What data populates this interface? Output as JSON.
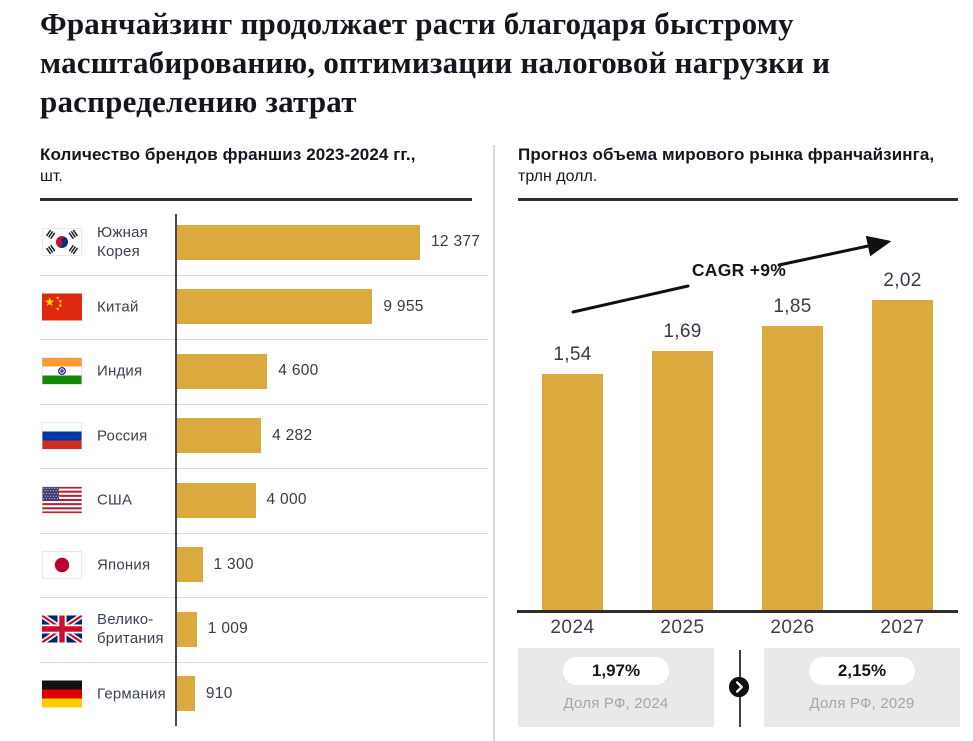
{
  "page_title": "Франчайзинг продолжает расти благодаря быстрому масштабированию, оптимизации налоговой нагрузки и распределению затрат",
  "colors": {
    "accent_gold": "#DCA93E",
    "dark_text": "#15151E",
    "label_text": "#3A4150",
    "muted_text": "#A5A5A8",
    "card_bg": "#E9E9EA"
  },
  "left_chart": {
    "title": "Количество брендов франшиз 2023-2024 гг.,",
    "unit": "шт.",
    "max_value": 12377,
    "rows": [
      {
        "country": "Южная\nКорея",
        "flag": "kr",
        "flag_icon": "south-korea-flag-icon",
        "value": 12377,
        "value_label": "12 377"
      },
      {
        "country": "Китай",
        "flag": "cn",
        "flag_icon": "china-flag-icon",
        "value": 9955,
        "value_label": "9 955"
      },
      {
        "country": "Индия",
        "flag": "in",
        "flag_icon": "india-flag-icon",
        "value": 4600,
        "value_label": "4 600"
      },
      {
        "country": "Россия",
        "flag": "ru",
        "flag_icon": "russia-flag-icon",
        "value": 4282,
        "value_label": "4 282"
      },
      {
        "country": "США",
        "flag": "us",
        "flag_icon": "usa-flag-icon",
        "value": 4000,
        "value_label": "4 000"
      },
      {
        "country": "Япония",
        "flag": "jp",
        "flag_icon": "japan-flag-icon",
        "value": 1300,
        "value_label": "1 300"
      },
      {
        "country": "Велико-\nбритания",
        "flag": "gb",
        "flag_icon": "uk-flag-icon",
        "value": 1009,
        "value_label": "1 009"
      },
      {
        "country": "Германия",
        "flag": "de",
        "flag_icon": "germany-flag-icon",
        "value": 910,
        "value_label": "910"
      }
    ]
  },
  "right_chart": {
    "title": "Прогноз объема мирового рынка франчайзинга,",
    "unit": "трлн долл.",
    "cagr_label": "CAGR +9%",
    "bars": [
      {
        "year": "2024",
        "value": 1.54,
        "value_label": "1,54"
      },
      {
        "year": "2025",
        "value": 1.69,
        "value_label": "1,69"
      },
      {
        "year": "2026",
        "value": 1.85,
        "value_label": "1,85"
      },
      {
        "year": "2027",
        "value": 2.02,
        "value_label": "2,02"
      }
    ]
  },
  "share_cards": {
    "left": {
      "percent": "1,97%",
      "caption": "Доля РФ, 2024"
    },
    "right": {
      "percent": "2,15%",
      "caption": "Доля РФ, 2029"
    },
    "arrow_icon": "chevron-right-icon"
  },
  "chart_data": [
    {
      "type": "bar",
      "orientation": "horizontal",
      "title": "Количество брендов франшиз 2023-2024 гг., шт.",
      "categories": [
        "Южная Корея",
        "Китай",
        "Индия",
        "Россия",
        "США",
        "Япония",
        "Великобритания",
        "Германия"
      ],
      "values": [
        12377,
        9955,
        4600,
        4282,
        4000,
        1300,
        1009,
        910
      ],
      "value_labels": [
        "12 377",
        "9 955",
        "4 600",
        "4 282",
        "4 000",
        "1 300",
        "1 009",
        "910"
      ],
      "bar_color": "#DCA93E",
      "xlim": [
        0,
        12377
      ],
      "grid": false,
      "legend": false
    },
    {
      "type": "bar",
      "orientation": "vertical",
      "title": "Прогноз объема мирового рынка франчайзинга, трлн долл.",
      "categories": [
        "2024",
        "2025",
        "2026",
        "2027"
      ],
      "values": [
        1.54,
        1.69,
        1.85,
        2.02
      ],
      "value_labels": [
        "1,54",
        "1,69",
        "1,85",
        "2,02"
      ],
      "annotation": "CAGR +9%",
      "bar_color": "#DCA93E",
      "ylim": [
        0,
        2.2
      ],
      "grid": false,
      "legend": false,
      "footnotes": [
        {
          "value": "1,97%",
          "label": "Доля РФ, 2024"
        },
        {
          "value": "2,15%",
          "label": "Доля РФ, 2029"
        }
      ]
    }
  ]
}
